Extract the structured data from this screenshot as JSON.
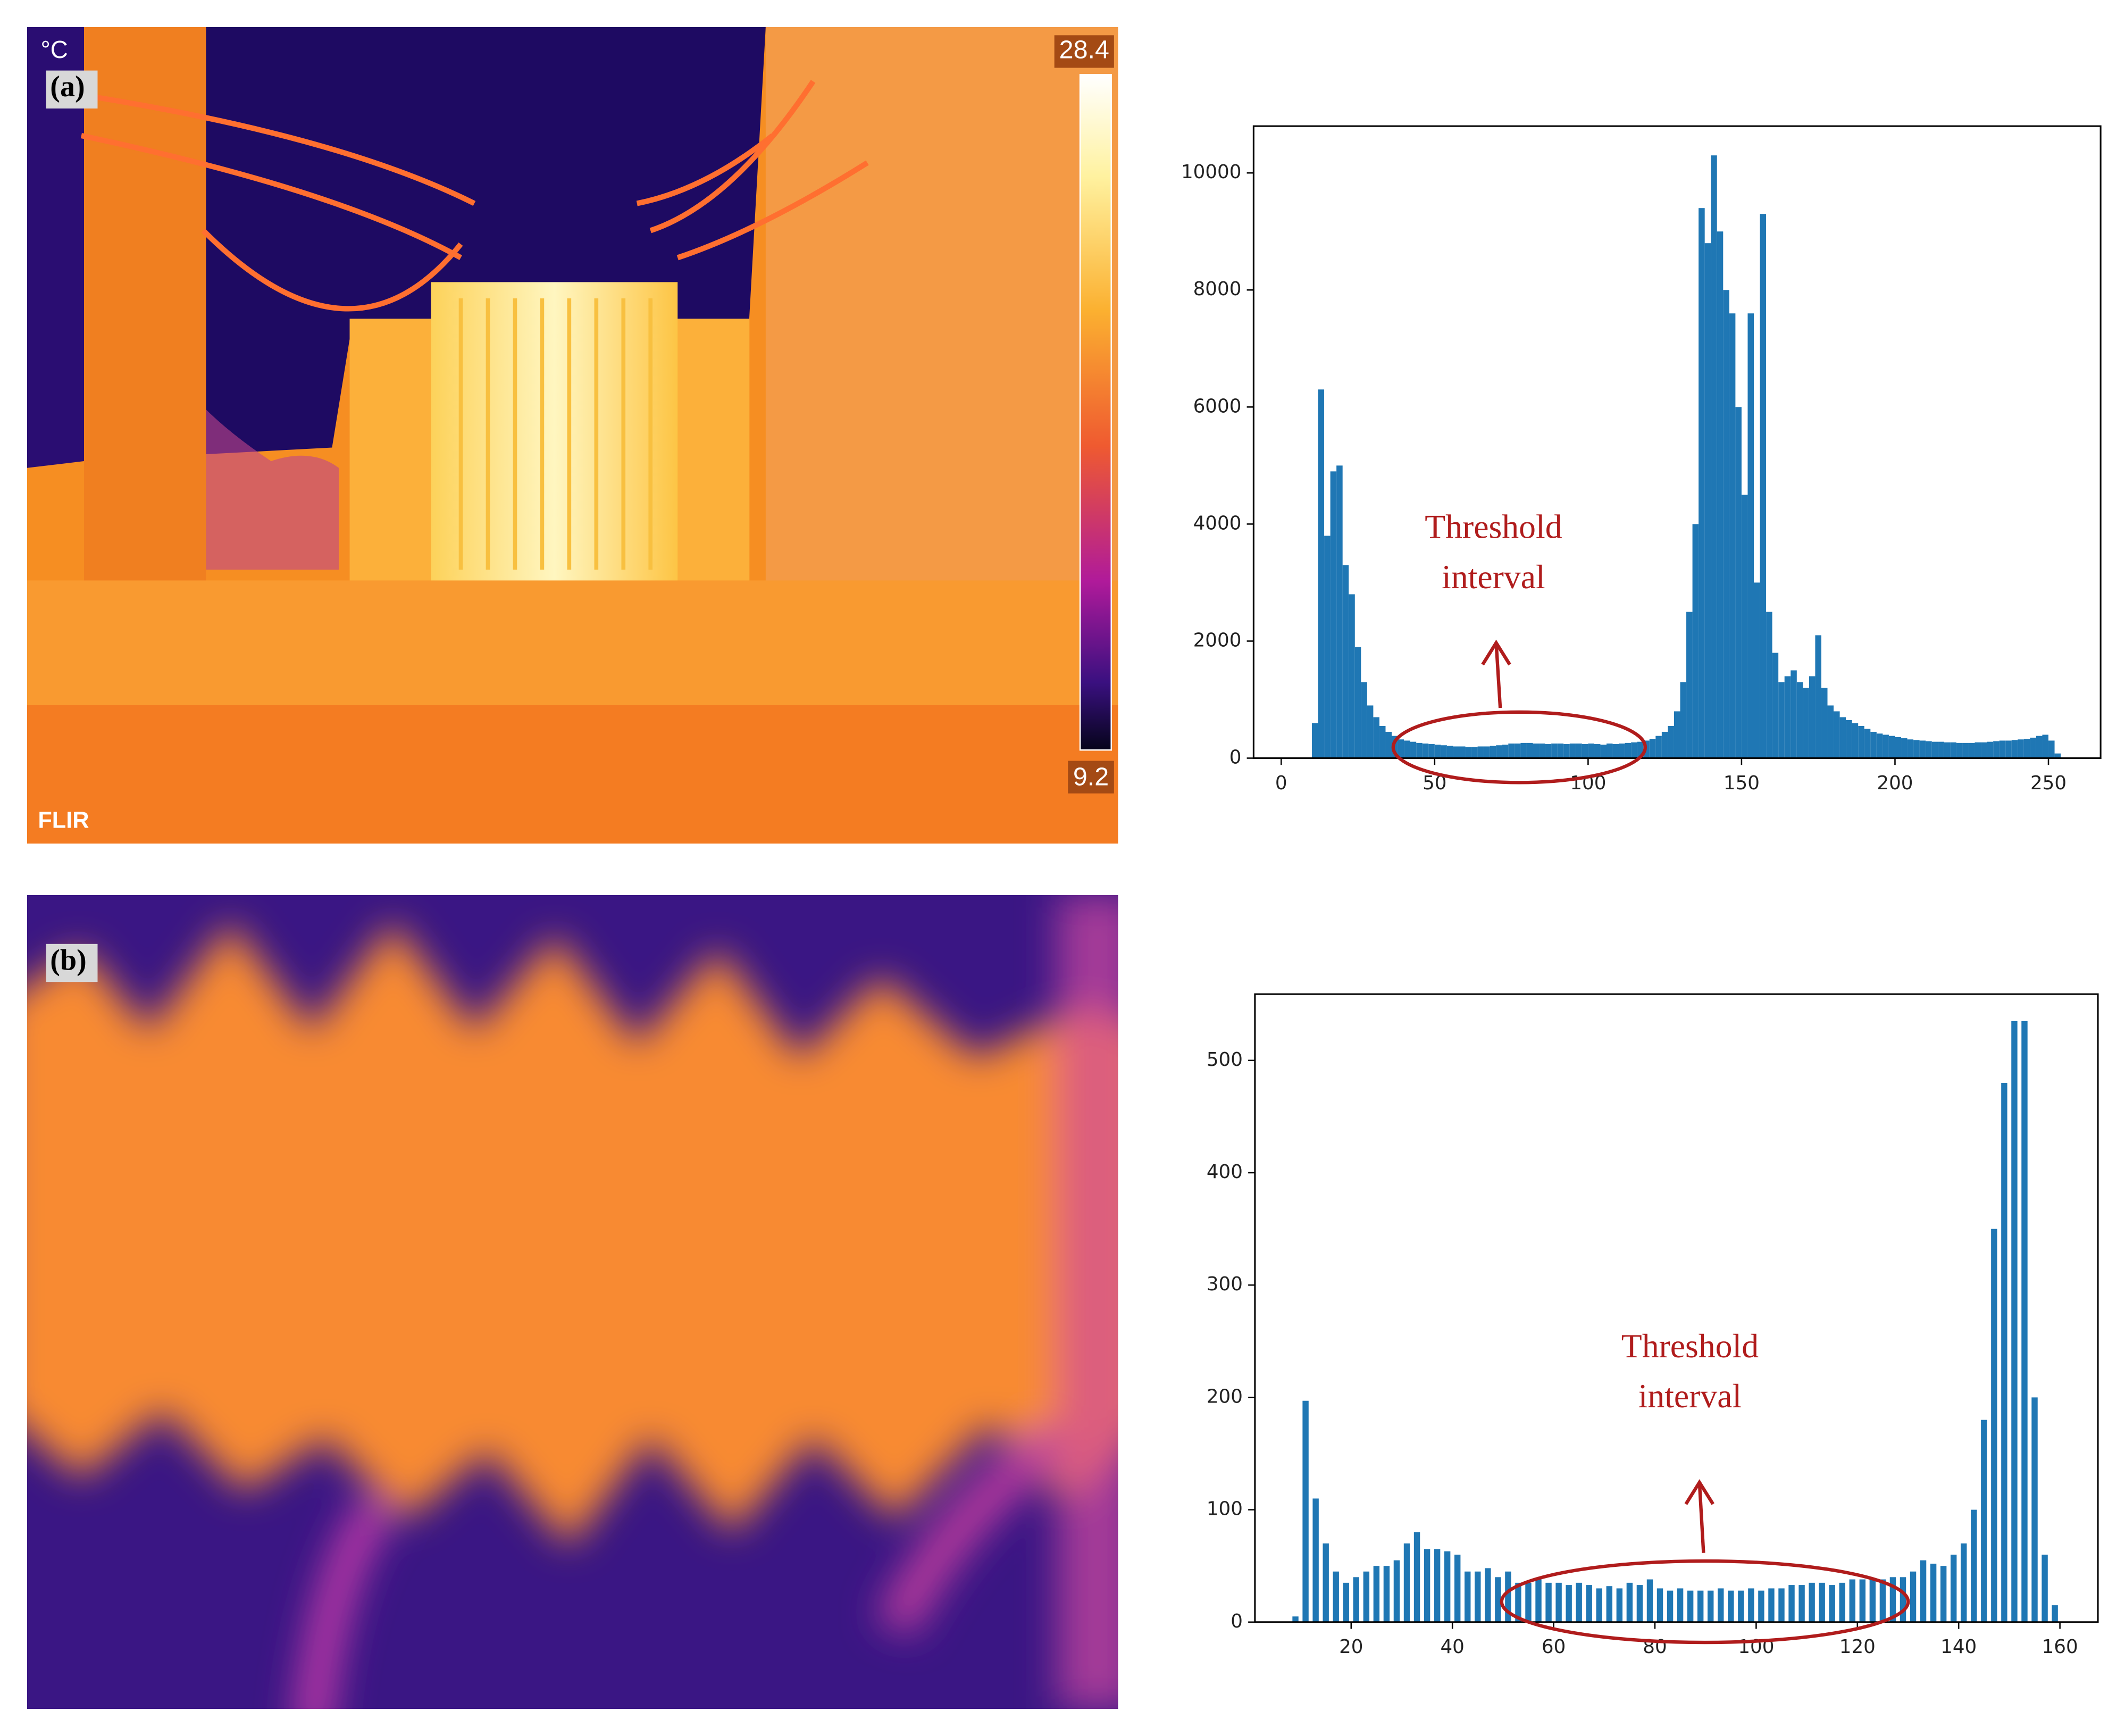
{
  "panels": [
    {
      "label": "(a)",
      "scale_unit": "°C",
      "scale_max": 28.4,
      "scale_min": 9.2,
      "brand": "FLIR"
    },
    {
      "label": "(b)"
    }
  ],
  "chart_data": [
    {
      "type": "histogram",
      "annotation": [
        "Threshold",
        "interval"
      ],
      "color": "#1f77b4",
      "bins": [
        10,
        12,
        14,
        16,
        18,
        20,
        22,
        24,
        26,
        28,
        30,
        32,
        34,
        36,
        38,
        40,
        42,
        44,
        46,
        48,
        50,
        52,
        54,
        56,
        58,
        60,
        62,
        64,
        66,
        68,
        70,
        72,
        74,
        76,
        78,
        80,
        82,
        84,
        86,
        88,
        90,
        92,
        94,
        96,
        98,
        100,
        102,
        104,
        106,
        108,
        110,
        112,
        114,
        116,
        118,
        120,
        122,
        124,
        126,
        128,
        130,
        132,
        134,
        136,
        138,
        140,
        142,
        144,
        146,
        148,
        150,
        152,
        154,
        156,
        158,
        160,
        162,
        164,
        166,
        168,
        170,
        172,
        174,
        176,
        178,
        180,
        182,
        184,
        186,
        188,
        190,
        192,
        194,
        196,
        198,
        200,
        202,
        204,
        206,
        208,
        210,
        212,
        214,
        216,
        218,
        220,
        222,
        224,
        226,
        228,
        230,
        232,
        234,
        236,
        238,
        240,
        242,
        244,
        246,
        248,
        250,
        252,
        254
      ],
      "values": [
        600,
        6300,
        3800,
        4900,
        5000,
        3300,
        2800,
        1900,
        1300,
        900,
        700,
        550,
        450,
        380,
        320,
        300,
        280,
        260,
        250,
        240,
        230,
        220,
        210,
        200,
        200,
        190,
        190,
        200,
        200,
        210,
        220,
        230,
        250,
        250,
        260,
        260,
        250,
        250,
        240,
        250,
        250,
        240,
        250,
        250,
        240,
        250,
        240,
        230,
        250,
        240,
        250,
        260,
        270,
        280,
        300,
        330,
        380,
        450,
        550,
        800,
        1300,
        2500,
        4000,
        9400,
        8800,
        10300,
        9000,
        8000,
        7600,
        6000,
        4500,
        7600,
        3000,
        9300,
        2500,
        1800,
        1300,
        1400,
        1500,
        1300,
        1200,
        1400,
        2100,
        1200,
        900,
        800,
        700,
        650,
        600,
        550,
        500,
        450,
        420,
        400,
        380,
        360,
        340,
        320,
        310,
        300,
        290,
        280,
        280,
        270,
        270,
        260,
        260,
        260,
        270,
        270,
        280,
        290,
        300,
        300,
        310,
        320,
        330,
        350,
        380,
        400,
        300,
        80
      ],
      "xlim": [
        -9,
        267
      ],
      "ylim": [
        0,
        10800
      ],
      "xticks": [
        0,
        50,
        100,
        150,
        200,
        250
      ],
      "yticks": [
        0,
        2000,
        4000,
        6000,
        8000,
        10000
      ]
    },
    {
      "type": "histogram",
      "annotation": [
        "Threshold",
        "interval"
      ],
      "color": "#1f77b4",
      "bins": [
        8,
        10,
        12,
        14,
        16,
        18,
        20,
        22,
        24,
        26,
        28,
        30,
        32,
        34,
        36,
        38,
        40,
        42,
        44,
        46,
        48,
        50,
        52,
        54,
        56,
        58,
        60,
        62,
        64,
        66,
        68,
        70,
        72,
        74,
        76,
        78,
        80,
        82,
        84,
        86,
        88,
        90,
        92,
        94,
        96,
        98,
        100,
        102,
        104,
        106,
        108,
        110,
        112,
        114,
        116,
        118,
        120,
        122,
        124,
        126,
        128,
        130,
        132,
        134,
        136,
        138,
        140,
        142,
        144,
        146,
        148,
        150,
        152,
        154,
        156,
        158,
        160
      ],
      "values": [
        5,
        197,
        110,
        70,
        45,
        35,
        40,
        45,
        50,
        50,
        55,
        70,
        80,
        65,
        65,
        63,
        60,
        45,
        45,
        48,
        40,
        45,
        35,
        35,
        38,
        35,
        35,
        33,
        35,
        33,
        30,
        32,
        30,
        35,
        33,
        38,
        30,
        28,
        30,
        28,
        28,
        28,
        30,
        28,
        28,
        30,
        28,
        30,
        30,
        33,
        33,
        35,
        35,
        33,
        35,
        38,
        38,
        38,
        38,
        40,
        40,
        45,
        55,
        52,
        50,
        60,
        70,
        100,
        180,
        350,
        480,
        535,
        535,
        200,
        60,
        15
      ],
      "xlim": [
        1,
        167.5
      ],
      "ylim": [
        0,
        559
      ],
      "xticks": [
        20,
        40,
        60,
        80,
        100,
        120,
        140,
        160
      ],
      "yticks": [
        0,
        100,
        200,
        300,
        400,
        500
      ]
    }
  ]
}
